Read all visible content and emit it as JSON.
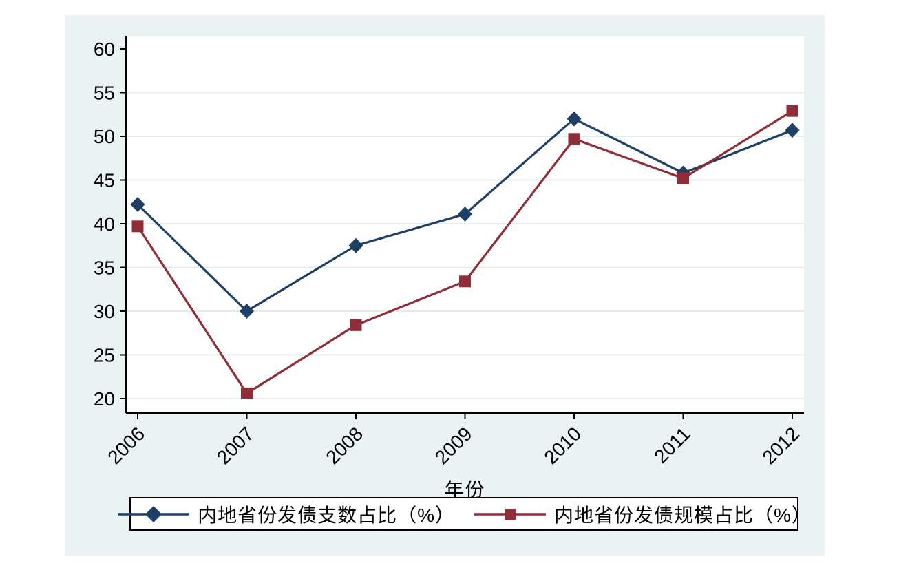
{
  "chart_data": {
    "type": "line",
    "x": [
      "2006",
      "2007",
      "2008",
      "2009",
      "2010",
      "2011",
      "2012"
    ],
    "xlabel": "年份",
    "ylabel": "",
    "yticks": [
      20,
      25,
      30,
      35,
      40,
      45,
      50,
      55,
      60
    ],
    "ylim": [
      20,
      60
    ],
    "grid": true,
    "legend_position": "bottom-box",
    "series": [
      {
        "name": "内地省份发债支数占比（%）",
        "marker": "diamond",
        "color": "#1e3f66",
        "values": [
          42.2,
          30.0,
          37.5,
          41.1,
          52.0,
          45.8,
          50.7
        ]
      },
      {
        "name": "内地省份发债规模占比（%）",
        "marker": "square",
        "color": "#8f2d38",
        "values": [
          39.7,
          20.6,
          28.4,
          33.4,
          49.7,
          45.2,
          52.9
        ]
      }
    ]
  },
  "colors": {
    "figure_bg": "#eaf2f3",
    "plot_bg": "#ffffff",
    "gridline": "#e2edef",
    "axis": "#000000"
  }
}
